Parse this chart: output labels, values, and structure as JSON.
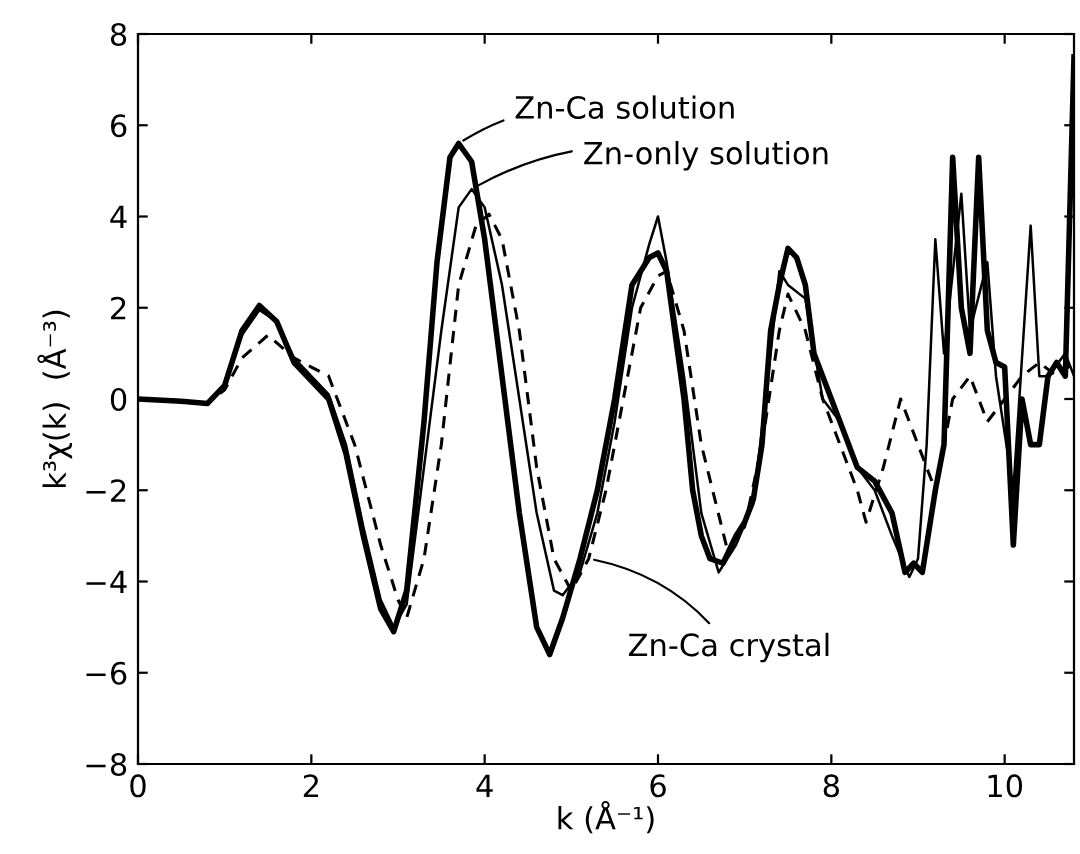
{
  "chart_data": {
    "type": "line",
    "xlabel": "k (Å⁻¹)",
    "ylabel": "k³χ(k)  (Å⁻³)",
    "xlim": [
      0,
      10.8
    ],
    "ylim": [
      -8,
      8
    ],
    "xticks": [
      0,
      2,
      4,
      6,
      8,
      10
    ],
    "yticks": [
      -8,
      -6,
      -4,
      -2,
      0,
      2,
      4,
      6,
      8
    ],
    "grid": false,
    "marker": "none",
    "series": [
      {
        "name": "Zn-Ca solution",
        "color": "#000000",
        "line_style": "solid",
        "x": [
          0,
          0.5,
          0.8,
          1.0,
          1.2,
          1.4,
          1.6,
          1.8,
          2.0,
          2.2,
          2.4,
          2.6,
          2.8,
          2.95,
          3.1,
          3.3,
          3.45,
          3.6,
          3.7,
          3.85,
          4.0,
          4.2,
          4.4,
          4.6,
          4.75,
          4.9,
          5.1,
          5.3,
          5.5,
          5.7,
          5.9,
          6.0,
          6.1,
          6.3,
          6.4,
          6.5,
          6.6,
          6.75,
          6.9,
          7.0,
          7.1,
          7.2,
          7.3,
          7.4,
          7.5,
          7.6,
          7.7,
          7.8,
          7.9,
          8.0,
          8.1,
          8.3,
          8.5,
          8.7,
          8.85,
          8.95,
          9.05,
          9.2,
          9.3,
          9.4,
          9.5,
          9.6,
          9.7,
          9.8,
          9.9,
          10.0,
          10.1,
          10.2,
          10.3,
          10.4,
          10.5,
          10.6,
          10.7,
          10.8
        ],
        "values": [
          0,
          -0.05,
          -0.1,
          0.3,
          1.5,
          2.05,
          1.7,
          0.8,
          0.4,
          0,
          -1.2,
          -3,
          -4.6,
          -5.1,
          -4.2,
          -0.5,
          3,
          5.3,
          5.6,
          5.2,
          3.5,
          0.5,
          -2.5,
          -5,
          -5.6,
          -4.8,
          -3.5,
          -2,
          0,
          2.5,
          3.1,
          3.2,
          2.8,
          0,
          -2,
          -3,
          -3.5,
          -3.6,
          -3,
          -2.7,
          -2.2,
          -1,
          1.5,
          2.5,
          3.3,
          3.1,
          2.5,
          1,
          0.5,
          0,
          -0.5,
          -1.5,
          -1.8,
          -2.5,
          -3.8,
          -3.6,
          -3.8,
          -2,
          -1,
          5.3,
          2,
          1,
          5.3,
          1.5,
          0.8,
          0.7,
          -3.2,
          0,
          -1,
          -1,
          0.5,
          0.8,
          0.5,
          7.5
        ]
      },
      {
        "name": "Zn-only solution",
        "color": "#000000",
        "line_style": "solid",
        "x": [
          0,
          0.5,
          0.8,
          1.0,
          1.2,
          1.4,
          1.6,
          1.8,
          2.0,
          2.2,
          2.4,
          2.6,
          2.8,
          2.95,
          3.1,
          3.3,
          3.5,
          3.7,
          3.85,
          4.0,
          4.2,
          4.4,
          4.6,
          4.8,
          4.9,
          5.1,
          5.3,
          5.5,
          5.7,
          5.9,
          6.0,
          6.1,
          6.3,
          6.5,
          6.7,
          6.9,
          7.1,
          7.3,
          7.4,
          7.5,
          7.7,
          7.9,
          8.1,
          8.3,
          8.5,
          8.7,
          8.9,
          9.0,
          9.1,
          9.2,
          9.3,
          9.5,
          9.6,
          9.8,
          9.9,
          10.1,
          10.3,
          10.4,
          10.5,
          10.7,
          10.8
        ],
        "values": [
          0,
          -0.05,
          -0.1,
          0.3,
          1.4,
          1.95,
          1.7,
          0.9,
          0.5,
          0.1,
          -1,
          -2.8,
          -4.4,
          -5.0,
          -4.5,
          -1.5,
          1.5,
          4.2,
          4.6,
          4.2,
          2.5,
          0,
          -2.5,
          -4.2,
          -4.3,
          -3.8,
          -2.5,
          -0.5,
          2,
          3.4,
          4.0,
          3.0,
          0.5,
          -2.5,
          -3.8,
          -3.2,
          -2.3,
          1,
          2.8,
          2.5,
          2.2,
          0,
          -0.5,
          -1.5,
          -2,
          -3,
          -3.9,
          -3.5,
          -1,
          3.5,
          1,
          4.5,
          1.5,
          3.0,
          0.5,
          -2,
          3.8,
          0.5,
          0.5,
          1,
          0.5
        ]
      },
      {
        "name": "Zn-Ca crystal",
        "color": "#000000",
        "line_style": "dashed",
        "x": [
          0,
          0.5,
          0.8,
          1.0,
          1.2,
          1.5,
          1.8,
          2.0,
          2.2,
          2.5,
          2.8,
          3.0,
          3.1,
          3.3,
          3.5,
          3.7,
          3.9,
          4.05,
          4.2,
          4.4,
          4.6,
          4.8,
          5.0,
          5.2,
          5.4,
          5.6,
          5.8,
          6.0,
          6.1,
          6.3,
          6.5,
          6.8,
          7.0,
          7.2,
          7.4,
          7.5,
          7.7,
          7.9,
          8.1,
          8.3,
          8.4,
          8.6,
          8.8,
          9.0,
          9.2,
          9.4,
          9.6,
          9.8,
          10.0,
          10.2,
          10.4,
          10.6,
          10.8
        ],
        "values": [
          0,
          -0.05,
          -0.1,
          0.2,
          0.9,
          1.4,
          0.9,
          0.7,
          0.5,
          -1,
          -3.2,
          -4.4,
          -4.8,
          -3.5,
          -1,
          2.5,
          3.8,
          4.05,
          3.5,
          1.5,
          -1.5,
          -3.5,
          -4.2,
          -3.5,
          -2,
          0,
          2,
          2.7,
          2.8,
          1.5,
          -1,
          -3.3,
          -2.8,
          -1,
          1.5,
          2.3,
          1.5,
          0,
          -1,
          -2,
          -2.7,
          -1.5,
          0,
          -1,
          -2,
          0,
          0.5,
          -0.5,
          0,
          0.5,
          0.8,
          0.5,
          0.8
        ]
      }
    ]
  }
}
